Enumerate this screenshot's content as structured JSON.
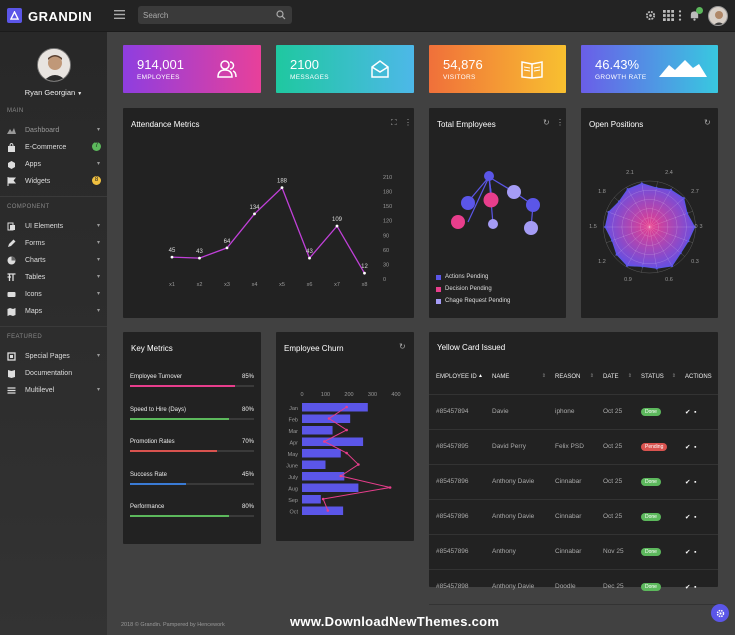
{
  "brand": "GRANDIN",
  "search": {
    "placeholder": "Search"
  },
  "user": {
    "name": "Ryan Georgian"
  },
  "sidebar": {
    "main_label": "MAIN",
    "component_label": "COMPONENT",
    "featured_label": "FEATURED",
    "items": [
      {
        "label": "Dashboard"
      },
      {
        "label": "E-Commerce",
        "badge": "7",
        "badge_color": "#5cb85c"
      },
      {
        "label": "Apps"
      },
      {
        "label": "Widgets",
        "badge": "8",
        "badge_color": "#f0c040"
      },
      {
        "label": "UI Elements"
      },
      {
        "label": "Forms"
      },
      {
        "label": "Charts"
      },
      {
        "label": "Tables"
      },
      {
        "label": "Icons"
      },
      {
        "label": "Maps"
      },
      {
        "label": "Special Pages"
      },
      {
        "label": "Documentation"
      },
      {
        "label": "Multilevel"
      }
    ]
  },
  "stats": [
    {
      "value": "914,001",
      "label": "EMPLOYEES",
      "icon": "users-icon"
    },
    {
      "value": "2100",
      "label": "MESSAGES",
      "icon": "mail-icon"
    },
    {
      "value": "54,876",
      "label": "VISITORS",
      "icon": "book-icon"
    },
    {
      "value": "46.43%",
      "label": "GROWTH RATE",
      "icon": "mountain-icon"
    }
  ],
  "attendance": {
    "title": "Attendance Metrics",
    "chart_data": {
      "type": "line",
      "categories": [
        "x1",
        "x2",
        "x3",
        "x4",
        "x5",
        "x6",
        "x7",
        "x8"
      ],
      "values": [
        45,
        43,
        64,
        134,
        188,
        43,
        109,
        12
      ],
      "yticks": [
        "0",
        "30",
        "60",
        "90",
        "120",
        "150",
        "180",
        "210"
      ],
      "ylim": [
        0,
        210
      ]
    }
  },
  "total_employees": {
    "title": "Total Employees",
    "legend": [
      "Actions Pending",
      "Decision Pending",
      "Chage Request Pending"
    ],
    "colors": {
      "actions": "#5b56e8",
      "decision": "#e83e8c",
      "change": "#a59cf5"
    }
  },
  "open_positions": {
    "title": "Open Positions",
    "chart_data": {
      "type": "radar",
      "axis_labels": [
        "0",
        "0.3",
        "0.6",
        "0.9",
        "1.2",
        "1.5",
        "1.8",
        "2.1",
        "2.4",
        "2.7",
        "3"
      ]
    }
  },
  "key_metrics": {
    "title": "Key Metrics",
    "rows": [
      {
        "label": "Employee Turnover",
        "pct": "85%",
        "value": 85,
        "color": "#e83e8c"
      },
      {
        "label": "Speed to Hire (Days)",
        "pct": "80%",
        "value": 80,
        "color": "#5cb85c"
      },
      {
        "label": "Promotion Rates",
        "pct": "70%",
        "value": 70,
        "color": "#d9534f"
      },
      {
        "label": "Success Rate",
        "pct": "45%",
        "value": 45,
        "color": "#3a7bd5"
      },
      {
        "label": "Performance",
        "pct": "80%",
        "value": 80,
        "color": "#5cb85c"
      }
    ]
  },
  "employee_churn": {
    "title": "Employee Churn",
    "chart_data": {
      "type": "bar",
      "categories": [
        "Jan",
        "Feb",
        "Mar",
        "Apr",
        "May",
        "June",
        "July",
        "Aug",
        "Sep",
        "Oct"
      ],
      "bars": [
        280,
        205,
        130,
        260,
        165,
        100,
        180,
        240,
        80,
        175
      ],
      "line": [
        190,
        115,
        190,
        95,
        190,
        240,
        165,
        375,
        90,
        110
      ],
      "xticks": [
        "0",
        "100",
        "200",
        "300",
        "400"
      ],
      "xlim": [
        0,
        400
      ]
    }
  },
  "yellow_cards": {
    "title": "Yellow Card Issued",
    "columns": [
      "EMPLOYEE ID",
      "NAME",
      "REASON",
      "DATE",
      "STATUS",
      "ACTIONS"
    ],
    "rows": [
      {
        "id": "#85457894",
        "name": "Davie",
        "reason": "iphone",
        "date": "Oct 25",
        "status": "Done",
        "status_color": "#5cb85c"
      },
      {
        "id": "#85457895",
        "name": "David Perry",
        "reason": "Felix PSD",
        "date": "Oct 25",
        "status": "Pending",
        "status_color": "#d9534f"
      },
      {
        "id": "#85457896",
        "name": "Anthony Davie",
        "reason": "Cinnabar",
        "date": "Oct 25",
        "status": "Done",
        "status_color": "#5cb85c"
      },
      {
        "id": "#85457896",
        "name": "Anthony Davie",
        "reason": "Cinnabar",
        "date": "Oct 25",
        "status": "Done",
        "status_color": "#5cb85c"
      },
      {
        "id": "#85457896",
        "name": "Anthony",
        "reason": "Cinnabar",
        "date": "Nov 25",
        "status": "Done",
        "status_color": "#5cb85c"
      },
      {
        "id": "#85457898",
        "name": "Anthony Davie",
        "reason": "Doodle",
        "date": "Dec 25",
        "status": "Done",
        "status_color": "#5cb85c"
      }
    ]
  },
  "footer": "2018 © Grandin. Pampered by Hencework",
  "watermark": "www.DownloadNewThemes.com"
}
